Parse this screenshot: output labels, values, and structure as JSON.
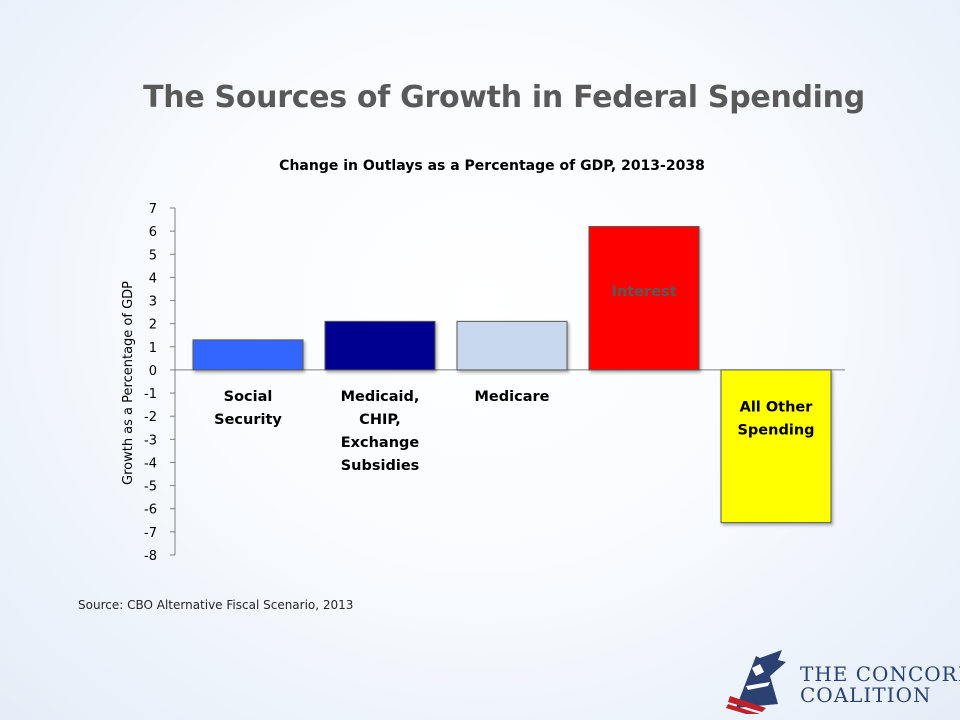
{
  "slide": {
    "title": "The Sources of Growth in Federal Spending",
    "source": "Source: CBO Alternative Fiscal Scenario, 2013"
  },
  "logo": {
    "name_line1": "THE CONCORD",
    "name_line2": "COALITION",
    "colors": {
      "navy": "#2a4172",
      "red": "#c0202a"
    }
  },
  "chart_data": {
    "type": "bar",
    "title": "Change in Outlays as a Percentage of GDP, 2013-2038",
    "ylabel": "Growth as a Percentage of GDP",
    "xlabel": "",
    "ylim": [
      -8,
      7
    ],
    "yticks": [
      7,
      6,
      5,
      4,
      3,
      2,
      1,
      0,
      -1,
      -2,
      -3,
      -4,
      -5,
      -6,
      -7,
      -8
    ],
    "grid": false,
    "legend": "none",
    "categories": [
      [
        "Social",
        "Security"
      ],
      [
        "Medicaid,",
        "CHIP,",
        "Exchange",
        "Subsidies"
      ],
      [
        "Medicare"
      ],
      [
        "Interest"
      ],
      [
        "All Other",
        "Spending"
      ]
    ],
    "values": [
      1.3,
      2.1,
      2.1,
      6.2,
      -6.6
    ],
    "colors": [
      "#3366ff",
      "#000090",
      "#c6d7ee",
      "#ff0000",
      "#ffff00"
    ]
  }
}
